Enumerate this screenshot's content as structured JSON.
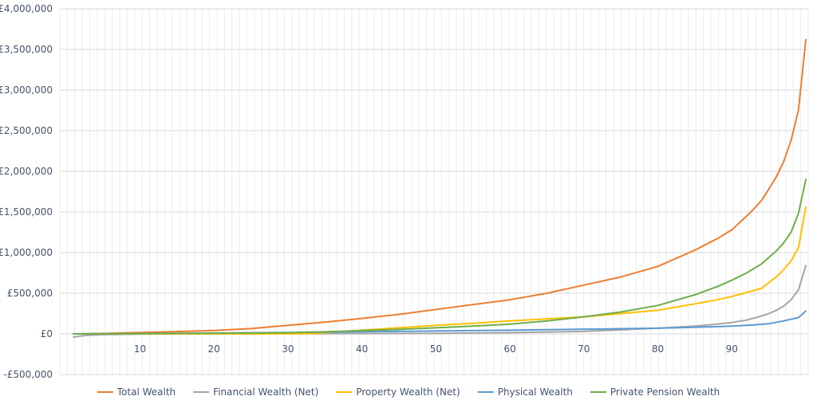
{
  "chart_data": {
    "type": "line",
    "title": "",
    "xlabel": "",
    "ylabel": "",
    "x_range": [
      1,
      99
    ],
    "x_tick_values": [
      10,
      20,
      30,
      40,
      50,
      60,
      70,
      80,
      90
    ],
    "x_tick_labels": [
      "10",
      "20",
      "30",
      "40",
      "50",
      "60",
      "70",
      "80",
      "90"
    ],
    "ylim": [
      -500000,
      4000000
    ],
    "y_tick_values": [
      -500000,
      0,
      500000,
      1000000,
      1500000,
      2000000,
      2500000,
      3000000,
      3500000,
      4000000
    ],
    "y_tick_labels": [
      "-£500,000",
      "£0",
      "£500,000",
      "£1,000,000",
      "£1,500,000",
      "£2,000,000",
      "£2,500,000",
      "£3,000,000",
      "£3,500,000",
      "£4,000,000"
    ],
    "grid": true,
    "legend_position": "bottom",
    "series": [
      {
        "name": "Total Wealth",
        "color": "#ED7D31",
        "points": [
          [
            1,
            0
          ],
          [
            5,
            5000
          ],
          [
            10,
            18000
          ],
          [
            15,
            28000
          ],
          [
            20,
            42000
          ],
          [
            25,
            65000
          ],
          [
            30,
            105000
          ],
          [
            35,
            145000
          ],
          [
            40,
            190000
          ],
          [
            45,
            240000
          ],
          [
            50,
            300000
          ],
          [
            55,
            360000
          ],
          [
            60,
            420000
          ],
          [
            65,
            500000
          ],
          [
            70,
            600000
          ],
          [
            75,
            700000
          ],
          [
            80,
            830000
          ],
          [
            85,
            1030000
          ],
          [
            88,
            1170000
          ],
          [
            90,
            1280000
          ],
          [
            92,
            1450000
          ],
          [
            93,
            1540000
          ],
          [
            94,
            1640000
          ],
          [
            95,
            1780000
          ],
          [
            96,
            1930000
          ],
          [
            97,
            2120000
          ],
          [
            98,
            2380000
          ],
          [
            99,
            2750000
          ],
          [
            100,
            3620000
          ]
        ]
      },
      {
        "name": "Financial Wealth (Net)",
        "color": "#A5A5A5",
        "points": [
          [
            1,
            -40000
          ],
          [
            2,
            -25000
          ],
          [
            3,
            -18000
          ],
          [
            5,
            -10000
          ],
          [
            10,
            -3000
          ],
          [
            20,
            0
          ],
          [
            30,
            2000
          ],
          [
            40,
            4000
          ],
          [
            50,
            6000
          ],
          [
            60,
            15000
          ],
          [
            70,
            30000
          ],
          [
            75,
            50000
          ],
          [
            80,
            70000
          ],
          [
            85,
            95000
          ],
          [
            88,
            120000
          ],
          [
            90,
            140000
          ],
          [
            92,
            170000
          ],
          [
            94,
            220000
          ],
          [
            95,
            250000
          ],
          [
            96,
            290000
          ],
          [
            97,
            340000
          ],
          [
            98,
            420000
          ],
          [
            99,
            540000
          ],
          [
            100,
            840000
          ]
        ]
      },
      {
        "name": "Property Wealth (Net)",
        "color": "#FFC000",
        "points": [
          [
            1,
            0
          ],
          [
            10,
            0
          ],
          [
            20,
            0
          ],
          [
            30,
            0
          ],
          [
            33,
            5000
          ],
          [
            35,
            15000
          ],
          [
            40,
            45000
          ],
          [
            45,
            75000
          ],
          [
            50,
            105000
          ],
          [
            55,
            130000
          ],
          [
            60,
            160000
          ],
          [
            65,
            185000
          ],
          [
            70,
            210000
          ],
          [
            75,
            250000
          ],
          [
            80,
            290000
          ],
          [
            85,
            370000
          ],
          [
            88,
            420000
          ],
          [
            90,
            460000
          ],
          [
            92,
            510000
          ],
          [
            94,
            560000
          ],
          [
            95,
            630000
          ],
          [
            96,
            700000
          ],
          [
            97,
            790000
          ],
          [
            98,
            900000
          ],
          [
            99,
            1060000
          ],
          [
            100,
            1560000
          ]
        ]
      },
      {
        "name": "Physical Wealth",
        "color": "#5B9BD5",
        "points": [
          [
            1,
            0
          ],
          [
            10,
            5000
          ],
          [
            20,
            10000
          ],
          [
            30,
            18000
          ],
          [
            40,
            25000
          ],
          [
            50,
            35000
          ],
          [
            60,
            45000
          ],
          [
            70,
            58000
          ],
          [
            80,
            70000
          ],
          [
            85,
            80000
          ],
          [
            90,
            95000
          ],
          [
            93,
            110000
          ],
          [
            95,
            125000
          ],
          [
            97,
            160000
          ],
          [
            99,
            200000
          ],
          [
            100,
            280000
          ]
        ]
      },
      {
        "name": "Private Pension Wealth",
        "color": "#70AD47",
        "points": [
          [
            1,
            0
          ],
          [
            10,
            3000
          ],
          [
            20,
            8000
          ],
          [
            30,
            15000
          ],
          [
            35,
            25000
          ],
          [
            40,
            40000
          ],
          [
            45,
            55000
          ],
          [
            50,
            75000
          ],
          [
            55,
            95000
          ],
          [
            60,
            120000
          ],
          [
            65,
            160000
          ],
          [
            70,
            210000
          ],
          [
            75,
            270000
          ],
          [
            80,
            350000
          ],
          [
            85,
            480000
          ],
          [
            88,
            580000
          ],
          [
            90,
            660000
          ],
          [
            92,
            750000
          ],
          [
            94,
            860000
          ],
          [
            95,
            940000
          ],
          [
            96,
            1020000
          ],
          [
            97,
            1120000
          ],
          [
            98,
            1250000
          ],
          [
            99,
            1480000
          ],
          [
            100,
            1900000
          ]
        ]
      }
    ]
  }
}
